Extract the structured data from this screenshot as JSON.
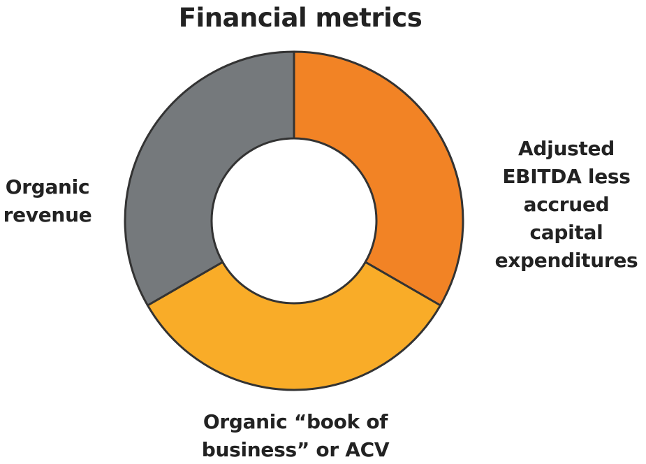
{
  "chart_data": {
    "type": "pie",
    "title": "Financial metrics",
    "donut": true,
    "start": "12 o'clock, clockwise",
    "slices": [
      {
        "label_lines": [
          "Adjusted",
          "EBITDA less",
          "accrued",
          "capital",
          "expenditures"
        ],
        "value": 33.33,
        "color": "#F28325"
      },
      {
        "label_lines": [
          "Organic “book of",
          "business” or ACV"
        ],
        "value": 33.33,
        "color": "#F9AC28"
      },
      {
        "label_lines": [
          "Organic",
          "revenue"
        ],
        "value": 33.33,
        "color": "#75797C"
      }
    ],
    "stroke_color": "#333333"
  }
}
